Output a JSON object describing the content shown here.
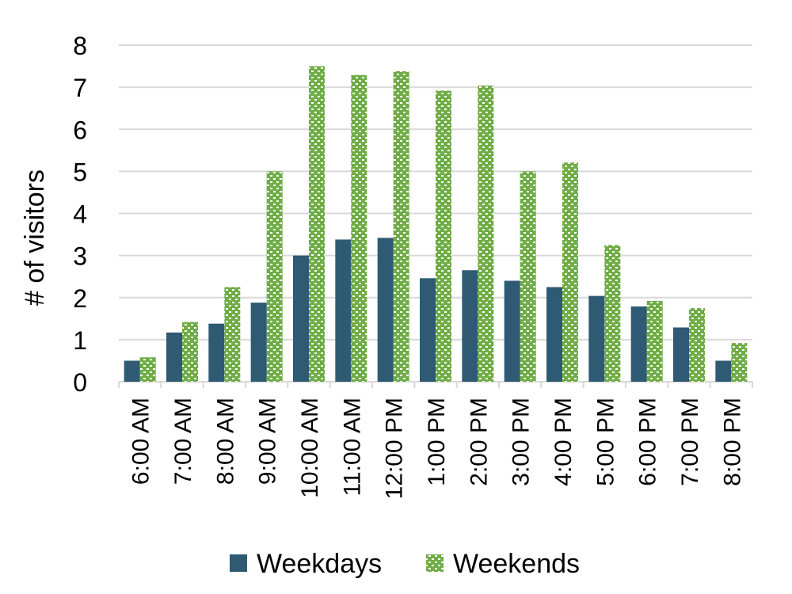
{
  "chart_data": {
    "type": "bar",
    "title": "",
    "xlabel": "",
    "ylabel": "# of visitors",
    "ylim": [
      0,
      8
    ],
    "yticks": [
      "0",
      "1",
      "2",
      "3",
      "4",
      "5",
      "6",
      "7",
      "8"
    ],
    "grid": true,
    "legend_position": "bottom",
    "categories": [
      "6:00 AM",
      "7:00 AM",
      "8:00 AM",
      "9:00 AM",
      "10:00 AM",
      "11:00 AM",
      "12:00 PM",
      "1:00 PM",
      "2:00 PM",
      "3:00 PM",
      "4:00 PM",
      "5:00 PM",
      "6:00 PM",
      "7:00 PM",
      "8:00 PM"
    ],
    "series": [
      {
        "name": "Weekdays",
        "color": "#2e5a74",
        "fill": "solid",
        "values": [
          0.5,
          1.17,
          1.38,
          1.88,
          3.0,
          3.38,
          3.42,
          2.46,
          2.65,
          2.4,
          2.25,
          2.04,
          1.79,
          1.29,
          0.5
        ]
      },
      {
        "name": "Weekends",
        "color": "#70ad47",
        "fill": "pattern",
        "values": [
          0.58,
          1.42,
          2.25,
          5.0,
          7.5,
          7.29,
          7.38,
          6.92,
          7.04,
          5.0,
          5.21,
          3.25,
          1.92,
          1.75,
          0.92
        ]
      }
    ]
  }
}
